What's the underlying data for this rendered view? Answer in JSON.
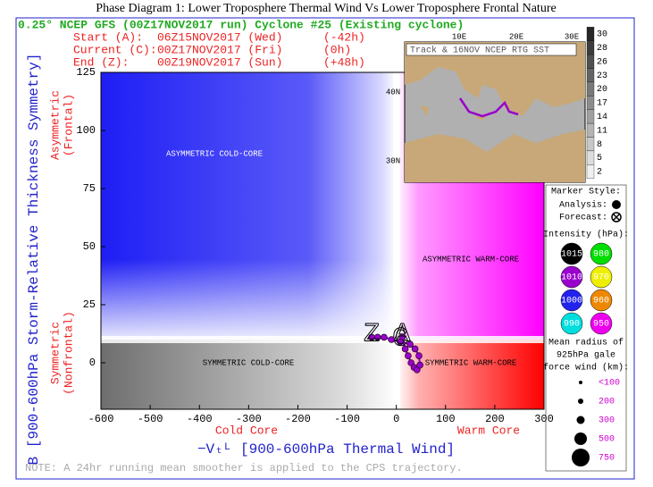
{
  "chart_data": {
    "type": "line",
    "title": "Phase Diagram 1: Lower Troposphere Thermal Wind Vs Lower Troposphere Frontal Nature",
    "header": {
      "model": "0.25° NCEP GFS (00Z17NOV2017 run) Cyclone #25 (Existing cyclone)",
      "rows": [
        {
          "label": "Start (A):",
          "time": "06Z15NOV2017 (Wed)",
          "offset": "(-42h)"
        },
        {
          "label": "Current (C):",
          "time": "00Z17NOV2017 (Fri)",
          "offset": "(0h)"
        },
        {
          "label": "End (Z):",
          "time": "00Z19NOV2017 (Sun)",
          "offset": "(+48h)"
        }
      ]
    },
    "x_label": "−Vₜᴸ [900-600hPa Thermal Wind]",
    "y_label": "B [900-600hPa Storm-Relative Thickness Symmetry]",
    "y_annotations": [
      [
        "Asymmetric",
        "(Frontal)"
      ],
      [
        "Symmetric",
        "(Nonfrontal)"
      ]
    ],
    "x_annotations": [
      "Cold Core",
      "Warm Core"
    ],
    "quadrant_labels": [
      "ASYMMETRIC COLD-CORE",
      "ASYMMETRIC WARM-CORE",
      "SYMMETRIC COLD-CORE",
      "SYMMETRIC WARM-CORE"
    ],
    "note": "NOTE:  A 24hr running mean smoother is applied to the CPS trajectory.",
    "xlim": [
      -600,
      300
    ],
    "ylim": [
      -20,
      125
    ],
    "xticks": [
      -600,
      -500,
      -400,
      -300,
      -200,
      -100,
      0,
      100,
      200,
      300
    ],
    "yticks": [
      0,
      25,
      50,
      75,
      100,
      125
    ],
    "color": "#9900cc",
    "x": [
      12,
      18,
      24,
      30,
      36,
      42,
      48,
      46,
      38,
      28,
      8,
      -10,
      -25,
      -38,
      -50
    ],
    "values": [
      11,
      6,
      3,
      0,
      -2,
      -3,
      -1,
      3,
      6,
      8,
      9,
      10,
      11,
      11,
      11
    ],
    "point_labels": [
      "A",
      null,
      null,
      null,
      null,
      null,
      null,
      null,
      null,
      null,
      "C",
      null,
      null,
      null,
      "Z"
    ],
    "inset": {
      "title": "Track & 16NOV NCEP RTG SST",
      "lon_labels": [
        "10E",
        "20E",
        "30E"
      ],
      "lat_labels": [
        "40N",
        "30N"
      ],
      "colorbar_ticks": [
        30,
        28,
        26,
        23,
        20,
        17,
        14,
        11,
        8,
        5,
        2
      ]
    },
    "legend": {
      "marker_title": "Marker Style:",
      "analysis": "Analysis:",
      "forecast": "Forecast:",
      "intensity_title": "Intensity (hPa):",
      "intensity": [
        {
          "value": 1015,
          "color": "#000000"
        },
        {
          "value": 980,
          "color": "#00dd00"
        },
        {
          "value": 1010,
          "color": "#9900cc"
        },
        {
          "value": 970,
          "color": "#eeee00"
        },
        {
          "value": 1000,
          "color": "#2222ee"
        },
        {
          "value": 960,
          "color": "#ee8800"
        },
        {
          "value": 990,
          "color": "#00dddd"
        },
        {
          "value": 950,
          "color": "#ee00ee"
        }
      ],
      "radius_title": [
        "Mean radius of",
        "925hPa gale",
        "force wind (km):"
      ],
      "radius": [
        "<100",
        "200",
        "300",
        "500",
        "750"
      ]
    }
  }
}
